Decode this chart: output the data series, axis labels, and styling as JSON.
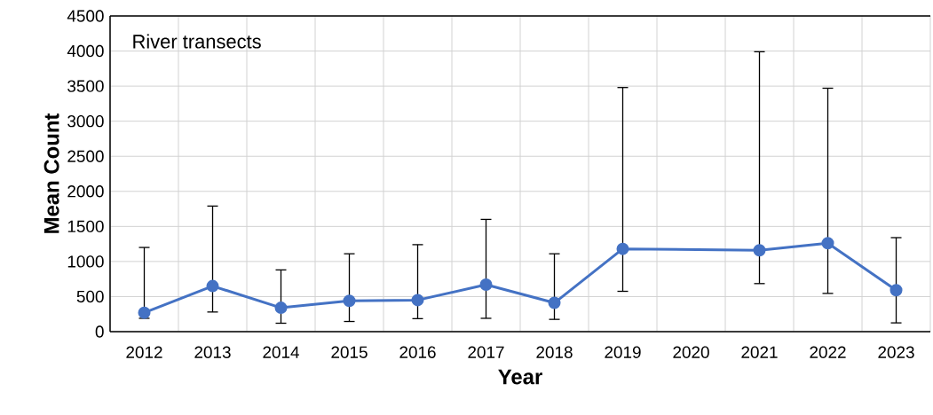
{
  "chart_data": {
    "type": "line",
    "xlabel": "Year",
    "ylabel": "Mean Count",
    "annotations": [
      "River transects"
    ],
    "categories": [
      "2012",
      "2013",
      "2014",
      "2015",
      "2016",
      "2017",
      "2018",
      "2019",
      "2020",
      "2021",
      "2022",
      "2023"
    ],
    "series": [
      {
        "color": "#4472c4",
        "values": [
          270,
          650,
          340,
          440,
          450,
          670,
          410,
          1180,
          null,
          1160,
          1260,
          590
        ],
        "errors": [
          [
            190,
            1200
          ],
          [
            280,
            1790
          ],
          [
            120,
            880
          ],
          [
            145,
            1110
          ],
          [
            185,
            1240
          ],
          [
            190,
            1600
          ],
          [
            175,
            1110
          ],
          [
            575,
            3480
          ],
          null,
          [
            685,
            3990
          ],
          [
            545,
            3470
          ],
          [
            125,
            1340
          ]
        ]
      }
    ],
    "ylim": [
      0,
      4500
    ],
    "yticks": [
      0,
      500,
      1000,
      1500,
      2000,
      2500,
      3000,
      3500,
      4000,
      4500
    ],
    "grid": true,
    "marker": "circle",
    "line_style": "solid"
  }
}
